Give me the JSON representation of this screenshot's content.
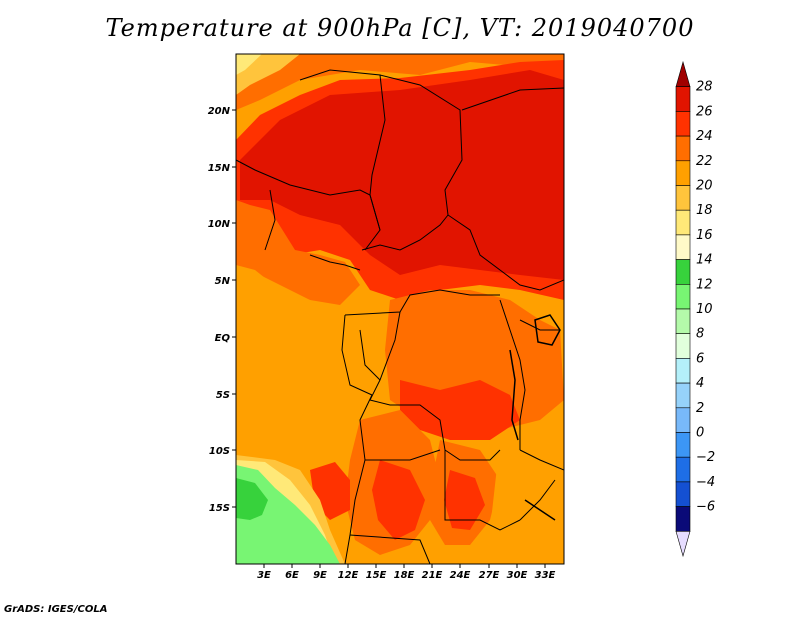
{
  "title": "Temperature at 900hPa [C], VT: 2019040700",
  "credit": "GrADS: IGES/COLA",
  "map": {
    "lat_ticks": [
      "20N",
      "15N",
      "10N",
      "5N",
      "EQ",
      "5S",
      "10S",
      "15S"
    ],
    "lon_ticks": [
      "3E",
      "6E",
      "9E",
      "12E",
      "15E",
      "18E",
      "21E",
      "24E",
      "27E",
      "30E",
      "33E"
    ]
  },
  "colorbar": {
    "labels": [
      "28",
      "26",
      "24",
      "22",
      "20",
      "18",
      "16",
      "14",
      "12",
      "10",
      "8",
      "6",
      "4",
      "2",
      "0",
      "−2",
      "−4",
      "−6"
    ],
    "colors": [
      "#a00000",
      "#e11400",
      "#ff3200",
      "#ff6e00",
      "#ffa000",
      "#ffc43c",
      "#ffe978",
      "#fffac8",
      "#37d23c",
      "#78f573",
      "#b4faaa",
      "#e1ffdc",
      "#b4f0fa",
      "#96d2fa",
      "#78b9fa",
      "#3c96f5",
      "#1e6ee6",
      "#1450d2",
      "#0a0a78",
      "#e6dcff"
    ]
  }
}
